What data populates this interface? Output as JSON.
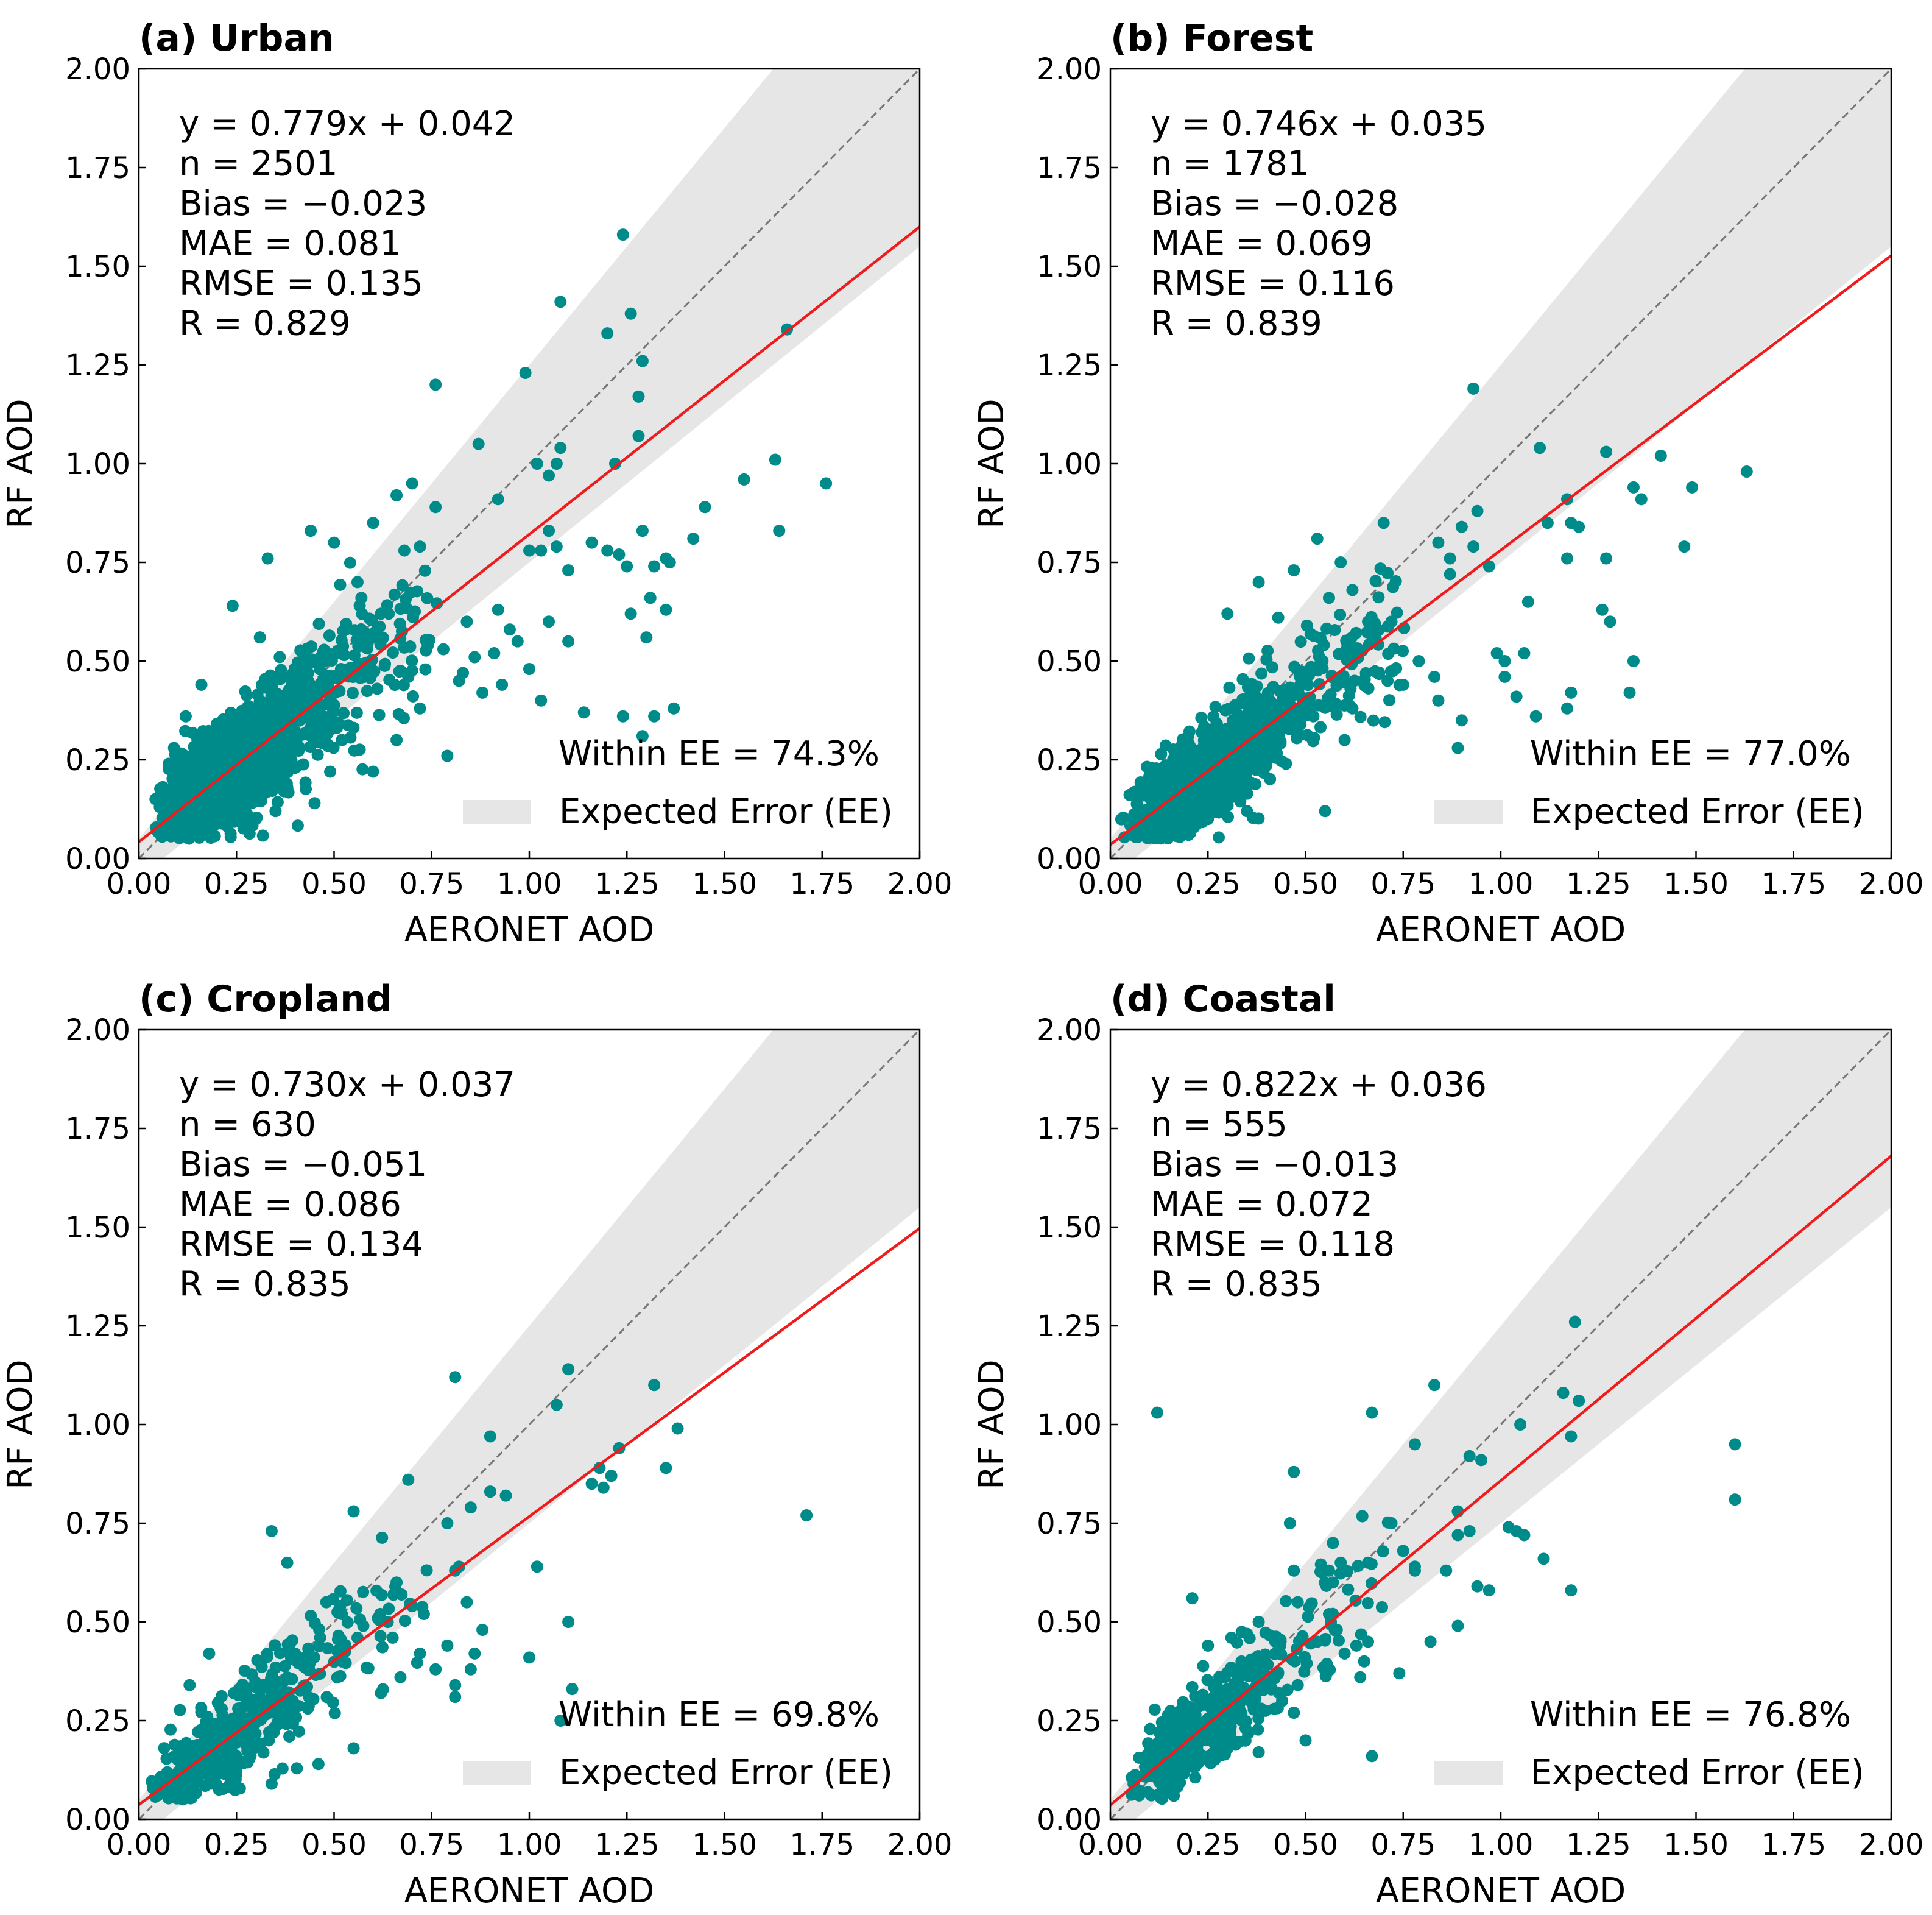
{
  "colors": {
    "points": "#008B8B",
    "fit_line": "#ee1c1c",
    "one_to_one": "#777777",
    "ee_band": "#e6e6e6"
  },
  "legend": {
    "ee_label": "Expected Error (EE)"
  },
  "chart_data": [
    {
      "type": "scatter",
      "title": "(a) Urban",
      "xlabel": "AERONET AOD",
      "ylabel": "RF AOD",
      "xlim": [
        0,
        2
      ],
      "ylim": [
        0,
        2
      ],
      "ticks": [
        "0.00",
        "0.25",
        "0.50",
        "0.75",
        "1.00",
        "1.25",
        "1.50",
        "1.75",
        "2.00"
      ],
      "fit": {
        "slope": 0.779,
        "intercept": 0.042
      },
      "stats": [
        "y = 0.779x + 0.042",
        "n = 2501",
        "Bias = −0.023",
        "MAE = 0.081",
        "RMSE = 0.135",
        "R = 0.829"
      ],
      "within_ee": "Within EE = 74.3%",
      "ee": {
        "abs": 0.05,
        "rel": 0.2
      },
      "points_listed": [
        [
          1.24,
          1.58
        ],
        [
          1.66,
          1.34
        ],
        [
          1.08,
          1.41
        ],
        [
          1.26,
          1.38
        ],
        [
          1.2,
          1.33
        ],
        [
          1.29,
          1.26
        ],
        [
          0.99,
          1.23
        ],
        [
          1.28,
          1.17
        ],
        [
          0.76,
          1.2
        ],
        [
          0.87,
          1.05
        ],
        [
          1.28,
          1.07
        ],
        [
          1.08,
          1.04
        ],
        [
          1.02,
          1.0
        ],
        [
          1.07,
          1.0
        ],
        [
          1.22,
          1.0
        ],
        [
          1.05,
          0.97
        ],
        [
          1.63,
          1.01
        ],
        [
          1.55,
          0.96
        ],
        [
          1.76,
          0.95
        ],
        [
          1.45,
          0.89
        ],
        [
          0.76,
          0.89
        ],
        [
          0.92,
          0.91
        ],
        [
          1.05,
          0.83
        ],
        [
          1.29,
          0.83
        ],
        [
          1.42,
          0.81
        ],
        [
          1.64,
          0.83
        ],
        [
          1.07,
          0.79
        ],
        [
          1.16,
          0.8
        ],
        [
          1.2,
          0.78
        ],
        [
          1.35,
          0.76
        ],
        [
          1.23,
          0.77
        ],
        [
          1.36,
          0.75
        ],
        [
          1.0,
          0.78
        ],
        [
          1.03,
          0.78
        ],
        [
          1.1,
          0.73
        ],
        [
          1.25,
          0.74
        ],
        [
          1.32,
          0.74
        ],
        [
          1.31,
          0.66
        ],
        [
          1.26,
          0.62
        ],
        [
          1.3,
          0.56
        ],
        [
          1.35,
          0.63
        ],
        [
          1.37,
          0.38
        ],
        [
          1.32,
          0.36
        ],
        [
          1.24,
          0.36
        ],
        [
          1.29,
          0.31
        ],
        [
          1.14,
          0.37
        ],
        [
          1.1,
          0.55
        ],
        [
          1.05,
          0.6
        ],
        [
          0.95,
          0.58
        ],
        [
          1.0,
          0.48
        ],
        [
          0.88,
          0.42
        ],
        [
          0.79,
          0.26
        ],
        [
          0.82,
          0.45
        ],
        [
          0.93,
          0.44
        ],
        [
          1.03,
          0.4
        ],
        [
          0.66,
          0.92
        ],
        [
          0.7,
          0.95
        ],
        [
          0.6,
          0.85
        ],
        [
          0.5,
          0.8
        ],
        [
          0.44,
          0.83
        ],
        [
          0.24,
          0.64
        ],
        [
          0.33,
          0.76
        ],
        [
          0.56,
          0.7
        ],
        [
          0.62,
          0.62
        ],
        [
          0.68,
          0.78
        ],
        [
          0.72,
          0.79
        ],
        [
          0.64,
          0.62
        ],
        [
          0.58,
          0.55
        ],
        [
          0.74,
          0.54
        ],
        [
          0.69,
          0.46
        ],
        [
          0.78,
          0.53
        ],
        [
          0.86,
          0.51
        ],
        [
          0.91,
          0.52
        ],
        [
          0.97,
          0.55
        ],
        [
          0.92,
          0.63
        ],
        [
          0.84,
          0.6
        ],
        [
          0.83,
          0.47
        ],
        [
          0.72,
          0.38
        ],
        [
          0.66,
          0.3
        ],
        [
          0.6,
          0.22
        ],
        [
          0.52,
          0.3
        ],
        [
          0.49,
          0.22
        ],
        [
          0.38,
          0.18
        ],
        [
          0.45,
          0.14
        ],
        [
          0.3,
          0.1
        ],
        [
          0.18,
          0.08
        ],
        [
          0.26,
          0.14
        ],
        [
          0.35,
          0.12
        ],
        [
          0.57,
          0.66
        ],
        [
          0.53,
          0.58
        ],
        [
          0.31,
          0.56
        ],
        [
          0.16,
          0.44
        ],
        [
          0.12,
          0.36
        ],
        [
          0.09,
          0.28
        ],
        [
          0.1,
          0.24
        ]
      ],
      "cloud_n": 1450,
      "cloud_sigma": 0.1
    },
    {
      "type": "scatter",
      "title": "(b) Forest",
      "xlabel": "AERONET AOD",
      "ylabel": "RF AOD",
      "xlim": [
        0,
        2
      ],
      "ylim": [
        0,
        2
      ],
      "ticks": [
        "0.00",
        "0.25",
        "0.50",
        "0.75",
        "1.00",
        "1.25",
        "1.50",
        "1.75",
        "2.00"
      ],
      "fit": {
        "slope": 0.746,
        "intercept": 0.035
      },
      "stats": [
        "y = 0.746x + 0.035",
        "n = 1781",
        "Bias = −0.028",
        "MAE = 0.069",
        "RMSE = 0.116",
        "R = 0.839"
      ],
      "within_ee": "Within EE = 77.0%",
      "ee": {
        "abs": 0.05,
        "rel": 0.2
      },
      "points_listed": [
        [
          0.93,
          1.19
        ],
        [
          1.1,
          1.04
        ],
        [
          1.27,
          1.03
        ],
        [
          1.41,
          1.02
        ],
        [
          1.63,
          0.98
        ],
        [
          1.34,
          0.94
        ],
        [
          1.36,
          0.91
        ],
        [
          1.49,
          0.94
        ],
        [
          1.17,
          0.91
        ],
        [
          1.18,
          0.85
        ],
        [
          1.12,
          0.85
        ],
        [
          1.2,
          0.84
        ],
        [
          1.47,
          0.79
        ],
        [
          1.27,
          0.76
        ],
        [
          1.17,
          0.76
        ],
        [
          0.94,
          0.88
        ],
        [
          0.9,
          0.84
        ],
        [
          0.7,
          0.85
        ],
        [
          0.84,
          0.8
        ],
        [
          0.87,
          0.76
        ],
        [
          0.93,
          0.79
        ],
        [
          0.97,
          0.74
        ],
        [
          0.87,
          0.72
        ],
        [
          1.26,
          0.63
        ],
        [
          1.28,
          0.6
        ],
        [
          1.07,
          0.65
        ],
        [
          1.34,
          0.5
        ],
        [
          1.33,
          0.42
        ],
        [
          1.18,
          0.42
        ],
        [
          1.17,
          0.38
        ],
        [
          1.09,
          0.36
        ],
        [
          1.01,
          0.5
        ],
        [
          1.01,
          0.46
        ],
        [
          0.99,
          0.52
        ],
        [
          1.06,
          0.52
        ],
        [
          1.04,
          0.41
        ],
        [
          0.9,
          0.35
        ],
        [
          0.89,
          0.28
        ],
        [
          0.84,
          0.4
        ],
        [
          0.83,
          0.46
        ],
        [
          0.79,
          0.5
        ],
        [
          0.75,
          0.44
        ],
        [
          0.71,
          0.45
        ],
        [
          0.67,
          0.55
        ],
        [
          0.62,
          0.52
        ],
        [
          0.54,
          0.5
        ],
        [
          0.55,
          0.12
        ],
        [
          0.53,
          0.81
        ],
        [
          0.47,
          0.73
        ],
        [
          0.43,
          0.61
        ],
        [
          0.38,
          0.7
        ],
        [
          0.3,
          0.62
        ],
        [
          0.56,
          0.66
        ],
        [
          0.59,
          0.75
        ],
        [
          0.62,
          0.68
        ],
        [
          0.66,
          0.6
        ],
        [
          0.72,
          0.6
        ],
        [
          0.62,
          0.38
        ],
        [
          0.45,
          0.24
        ],
        [
          0.35,
          0.12
        ],
        [
          0.6,
          0.3
        ],
        [
          0.52,
          0.36
        ],
        [
          0.2,
          0.06
        ],
        [
          0.25,
          0.1
        ]
      ],
      "cloud_n": 1050,
      "cloud_sigma": 0.085
    },
    {
      "type": "scatter",
      "title": "(c) Cropland",
      "xlabel": "AERONET AOD",
      "ylabel": "RF AOD",
      "xlim": [
        0,
        2
      ],
      "ylim": [
        0,
        2
      ],
      "ticks": [
        "0.00",
        "0.25",
        "0.50",
        "0.75",
        "1.00",
        "1.25",
        "1.50",
        "1.75",
        "2.00"
      ],
      "fit": {
        "slope": 0.73,
        "intercept": 0.037
      },
      "stats": [
        "y = 0.730x + 0.037",
        "n = 630",
        "Bias = −0.051",
        "MAE = 0.086",
        "RMSE = 0.134",
        "R = 0.835"
      ],
      "within_ee": "Within EE = 69.8%",
      "ee": {
        "abs": 0.05,
        "rel": 0.2
      },
      "points_listed": [
        [
          0.81,
          1.12
        ],
        [
          1.1,
          1.14
        ],
        [
          1.32,
          1.1
        ],
        [
          1.07,
          1.05
        ],
        [
          1.38,
          0.99
        ],
        [
          0.9,
          0.97
        ],
        [
          1.23,
          0.94
        ],
        [
          1.35,
          0.89
        ],
        [
          1.18,
          0.89
        ],
        [
          1.19,
          0.84
        ],
        [
          1.16,
          0.85
        ],
        [
          1.21,
          0.87
        ],
        [
          1.71,
          0.77
        ],
        [
          0.69,
          0.86
        ],
        [
          0.9,
          0.83
        ],
        [
          0.94,
          0.82
        ],
        [
          0.85,
          0.79
        ],
        [
          0.79,
          0.75
        ],
        [
          0.82,
          0.64
        ],
        [
          0.81,
          0.63
        ],
        [
          1.02,
          0.64
        ],
        [
          0.34,
          0.73
        ],
        [
          0.38,
          0.65
        ],
        [
          0.55,
          0.78
        ],
        [
          0.48,
          0.55
        ],
        [
          0.52,
          0.52
        ],
        [
          0.66,
          0.6
        ],
        [
          0.7,
          0.54
        ],
        [
          0.73,
          0.52
        ],
        [
          0.84,
          0.55
        ],
        [
          0.88,
          0.48
        ],
        [
          0.86,
          0.42
        ],
        [
          0.85,
          0.38
        ],
        [
          1.1,
          0.5
        ],
        [
          1.0,
          0.41
        ],
        [
          1.11,
          0.33
        ],
        [
          1.08,
          0.25
        ],
        [
          0.81,
          0.31
        ],
        [
          0.81,
          0.34
        ],
        [
          0.79,
          0.44
        ],
        [
          0.76,
          0.38
        ],
        [
          0.72,
          0.42
        ],
        [
          0.67,
          0.36
        ],
        [
          0.65,
          0.46
        ],
        [
          0.55,
          0.18
        ],
        [
          0.46,
          0.14
        ],
        [
          0.34,
          0.09
        ],
        [
          0.25,
          0.08
        ],
        [
          0.13,
          0.34
        ],
        [
          0.18,
          0.42
        ],
        [
          0.4,
          0.42
        ],
        [
          0.52,
          0.4
        ],
        [
          0.56,
          0.46
        ],
        [
          0.62,
          0.32
        ],
        [
          0.04,
          0.08
        ],
        [
          0.06,
          0.1
        ]
      ],
      "cloud_n": 470,
      "cloud_sigma": 0.085
    },
    {
      "type": "scatter",
      "title": "(d) Coastal",
      "xlabel": "AERONET AOD",
      "ylabel": "RF AOD",
      "xlim": [
        0,
        2
      ],
      "ylim": [
        0,
        2
      ],
      "ticks": [
        "0.00",
        "0.25",
        "0.50",
        "0.75",
        "1.00",
        "1.25",
        "1.50",
        "1.75",
        "2.00"
      ],
      "fit": {
        "slope": 0.822,
        "intercept": 0.036
      },
      "stats": [
        "y = 0.822x + 0.036",
        "n = 555",
        "Bias = −0.013",
        "MAE = 0.072",
        "RMSE = 0.118",
        "R = 0.835"
      ],
      "within_ee": "Within EE = 76.8%",
      "ee": {
        "abs": 0.05,
        "rel": 0.2
      },
      "points_listed": [
        [
          1.19,
          1.26
        ],
        [
          0.12,
          1.03
        ],
        [
          0.67,
          1.03
        ],
        [
          0.83,
          1.1
        ],
        [
          1.16,
          1.08
        ],
        [
          1.2,
          1.06
        ],
        [
          1.05,
          1.0
        ],
        [
          1.18,
          0.97
        ],
        [
          1.6,
          0.95
        ],
        [
          1.6,
          0.81
        ],
        [
          0.78,
          0.95
        ],
        [
          0.92,
          0.92
        ],
        [
          0.95,
          0.91
        ],
        [
          0.72,
          0.75
        ],
        [
          0.46,
          0.75
        ],
        [
          0.47,
          0.88
        ],
        [
          0.57,
          0.7
        ],
        [
          0.56,
          0.63
        ],
        [
          0.59,
          0.65
        ],
        [
          0.66,
          0.65
        ],
        [
          0.75,
          0.68
        ],
        [
          0.78,
          0.64
        ],
        [
          0.78,
          0.63
        ],
        [
          0.86,
          0.63
        ],
        [
          0.89,
          0.72
        ],
        [
          0.89,
          0.78
        ],
        [
          0.92,
          0.73
        ],
        [
          1.02,
          0.74
        ],
        [
          1.04,
          0.73
        ],
        [
          1.06,
          0.72
        ],
        [
          1.11,
          0.66
        ],
        [
          0.94,
          0.59
        ],
        [
          0.97,
          0.58
        ],
        [
          1.18,
          0.58
        ],
        [
          0.89,
          0.49
        ],
        [
          0.82,
          0.45
        ],
        [
          0.74,
          0.37
        ],
        [
          0.66,
          0.45
        ],
        [
          0.63,
          0.44
        ],
        [
          0.65,
          0.4
        ],
        [
          0.58,
          0.48
        ],
        [
          0.56,
          0.52
        ],
        [
          0.57,
          0.6
        ],
        [
          0.53,
          0.45
        ],
        [
          0.48,
          0.34
        ],
        [
          0.47,
          0.27
        ],
        [
          0.44,
          0.3
        ],
        [
          0.5,
          0.2
        ],
        [
          0.42,
          0.28
        ],
        [
          0.67,
          0.16
        ],
        [
          0.21,
          0.56
        ],
        [
          0.25,
          0.44
        ],
        [
          0.31,
          0.46
        ],
        [
          0.35,
          0.47
        ],
        [
          0.38,
          0.5
        ],
        [
          0.47,
          0.63
        ],
        [
          0.48,
          0.55
        ],
        [
          0.64,
          0.36
        ],
        [
          0.6,
          0.42
        ],
        [
          0.3,
          0.18
        ],
        [
          0.38,
          0.17
        ]
      ],
      "cloud_n": 420,
      "cloud_sigma": 0.075
    }
  ]
}
